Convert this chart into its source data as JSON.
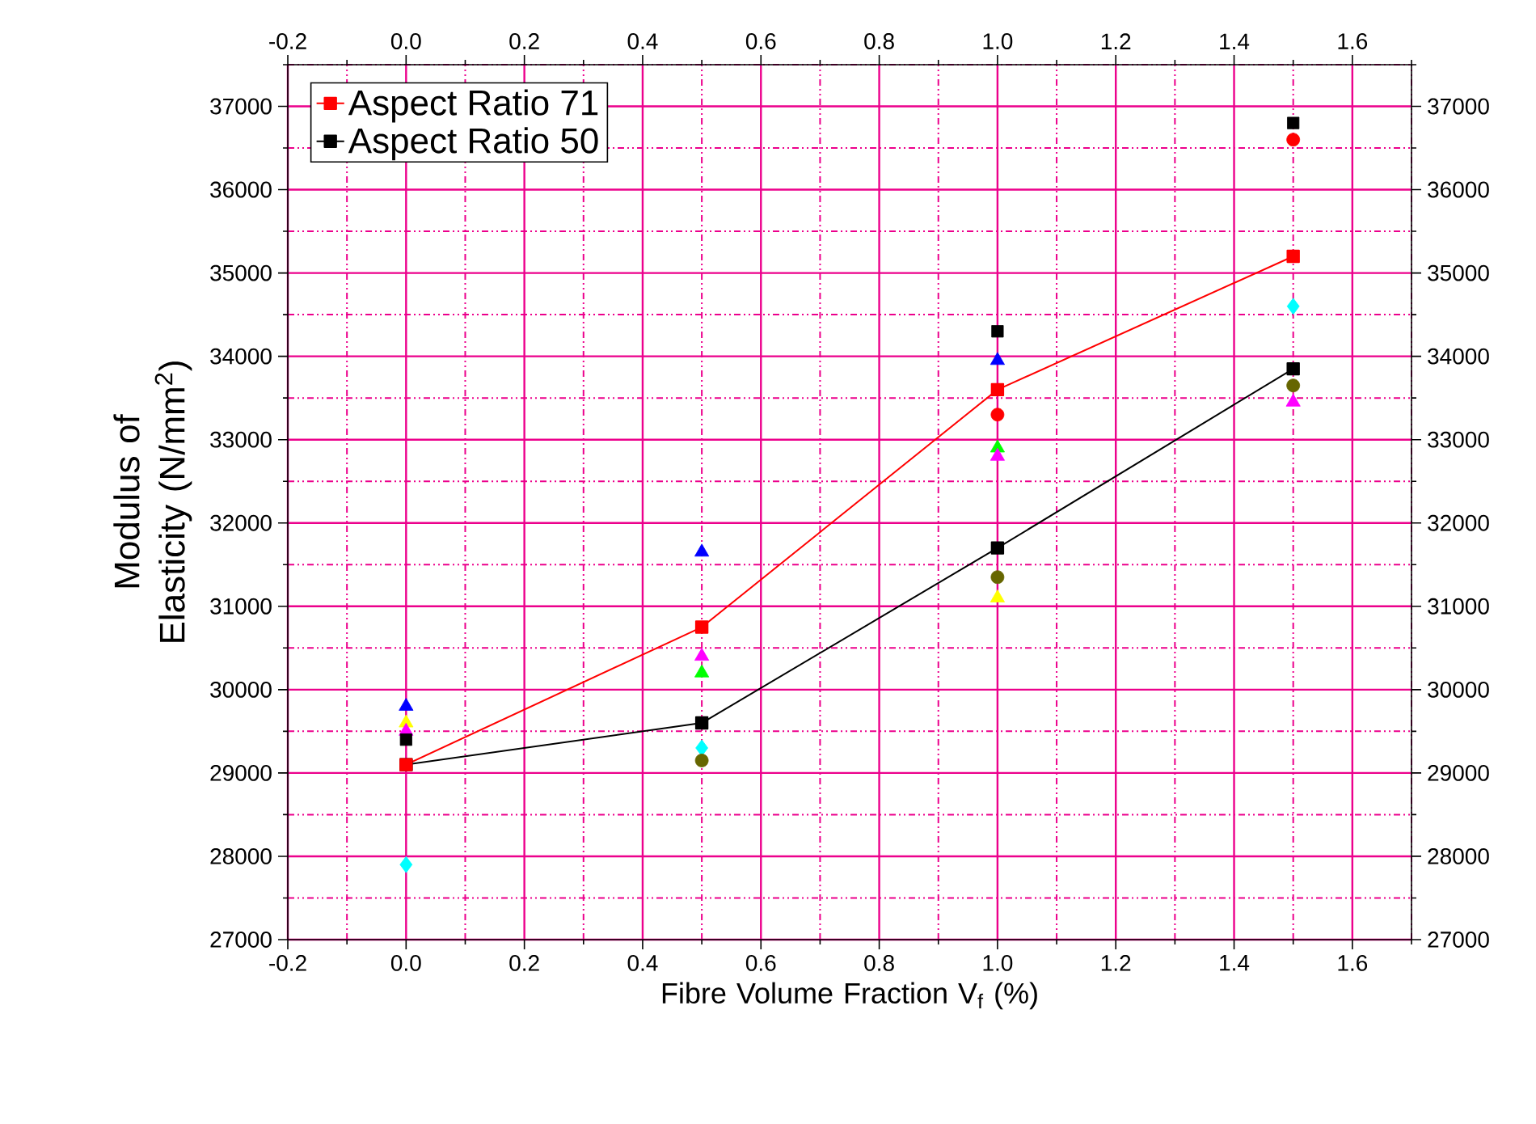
{
  "chart_data": {
    "type": "line",
    "xlabel": "Fibre Volume Fraction V$_{f}$ (%)",
    "ylabel": "Modulus of Elasticity (N/mm$^{2}$)",
    "x": [
      0,
      0.5,
      1.0,
      1.5
    ],
    "series": [
      {
        "name": "Aspect Ratio 50",
        "color": "#000000",
        "marker": "square",
        "values": [
          29100,
          29600,
          31700,
          33850
        ]
      },
      {
        "name": "Aspect Ratio 71",
        "color": "#ff0000",
        "marker": "square",
        "values": [
          29100,
          30750,
          33600,
          35200
        ]
      },
      {
        "type": "scatter",
        "color": "#00ffff",
        "marker": "diamond",
        "values": [
          27900,
          29300,
          null,
          34600
        ]
      },
      {
        "type": "scatter",
        "color": "#00ff00",
        "marker": "triangle",
        "values": [
          null,
          30200,
          32900,
          null
        ]
      },
      {
        "type": "scatter",
        "color": "#0000ff",
        "marker": "triangle",
        "values": [
          29800,
          31650,
          33950,
          null
        ]
      },
      {
        "type": "scatter",
        "color": "#ffff00",
        "marker": "triangle",
        "values": [
          29600,
          null,
          31100,
          null
        ]
      },
      {
        "type": "scatter",
        "color": "#ff00ff",
        "marker": "triangle",
        "values": [
          29500,
          30400,
          32800,
          33450
        ]
      },
      {
        "type": "scatter",
        "color": "#ff0000",
        "marker": "circle",
        "values": [
          null,
          null,
          33300,
          36600
        ]
      },
      {
        "type": "scatter",
        "color": "#666600",
        "marker": "circle",
        "values": [
          null,
          29150,
          31350,
          33650
        ]
      },
      {
        "type": "scatter",
        "color": "#000000",
        "marker": "square",
        "values": [
          29400,
          null,
          34300,
          36800
        ]
      }
    ],
    "xlim": [
      -0.2,
      1.7
    ],
    "ylim": [
      27000,
      37500
    ],
    "xticks": [
      -0.2,
      {
        "value": -0.1,
        "label": null
      },
      {
        "value": 0,
        "label": "0.0"
      },
      {
        "value": 0.1,
        "label": null
      },
      0.2,
      {
        "value": 0.3,
        "label": null
      },
      0.4,
      {
        "value": 0.5,
        "label": null
      },
      0.6,
      {
        "value": 0.7,
        "label": null
      },
      0.8,
      {
        "value": 0.9,
        "label": null
      },
      {
        "value": 1,
        "label": "1.0"
      },
      {
        "value": 1.1,
        "label": null
      },
      1.2,
      {
        "value": 1.3,
        "label": null
      },
      1.4,
      {
        "value": 1.5,
        "label": null
      },
      1.6,
      {
        "value": 1.7,
        "label": null
      }
    ],
    "x2lim": [
      -0.2,
      1.7
    ],
    "x2ticks": [
      -0.2,
      {
        "value": -0.1,
        "label": null
      },
      {
        "value": 0,
        "label": "0.0"
      },
      {
        "value": 0.1,
        "label": null
      },
      0.2,
      {
        "value": 0.3,
        "label": null
      },
      0.4,
      {
        "value": 0.5,
        "label": null
      },
      0.6,
      {
        "value": 0.7,
        "label": null
      },
      0.8,
      {
        "value": 0.9,
        "label": null
      },
      {
        "value": 1,
        "label": "1.0"
      },
      {
        "value": 1.1,
        "label": null
      },
      1.2,
      {
        "value": 1.3,
        "label": null
      },
      1.4,
      {
        "value": 1.5,
        "label": null
      },
      1.6,
      {
        "value": 1.7,
        "label": null
      }
    ],
    "yticks": [
      27000,
      {
        "value": 27500,
        "label": null
      },
      28000,
      {
        "value": 28500,
        "label": null
      },
      29000,
      {
        "value": 29500,
        "label": null
      },
      30000,
      {
        "value": 30500,
        "label": null
      },
      31000,
      {
        "value": 31500,
        "label": null
      },
      32000,
      {
        "value": 32500,
        "label": null
      },
      33000,
      {
        "value": 33500,
        "label": null
      },
      34000,
      {
        "value": 34500,
        "label": null
      },
      35000,
      {
        "value": 35500,
        "label": null
      },
      36000,
      {
        "value": 36500,
        "label": null
      },
      37000,
      {
        "value": 37500,
        "label": null
      }
    ],
    "y2lim": [
      27000,
      37500
    ],
    "y2ticks": [
      27000,
      {
        "value": 27500,
        "label": null
      },
      28000,
      {
        "value": 28500,
        "label": null
      },
      29000,
      {
        "value": 29500,
        "label": null
      },
      30000,
      {
        "value": 30500,
        "label": null
      },
      31000,
      {
        "value": 31500,
        "label": null
      },
      32000,
      {
        "value": 32500,
        "label": null
      },
      33000,
      {
        "value": 33500,
        "label": null
      },
      34000,
      {
        "value": 34500,
        "label": null
      },
      35000,
      {
        "value": 35500,
        "label": null
      },
      36000,
      {
        "value": 36500,
        "label": null
      },
      37000,
      {
        "value": 37500,
        "label": null
      }
    ],
    "grid": true,
    "legend": "top left"
  }
}
